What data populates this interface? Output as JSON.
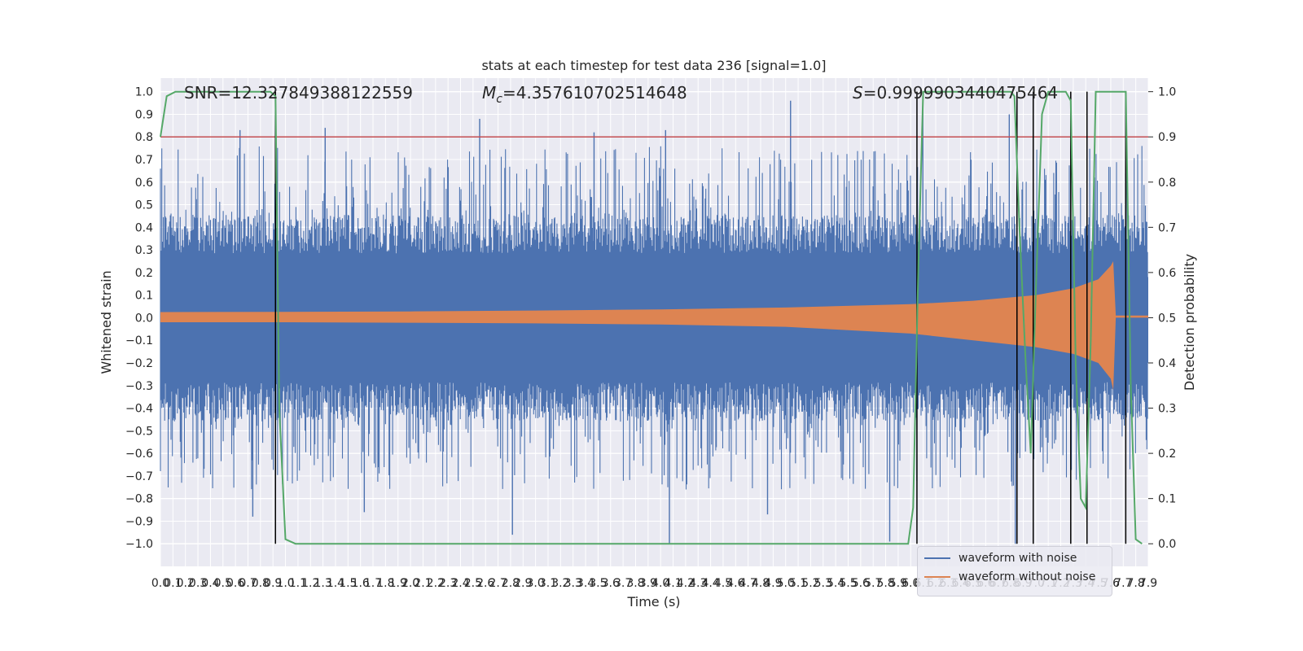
{
  "chart_data": {
    "type": "line",
    "title": "stats at each timestep for test data 236 [signal=1.0]",
    "xlabel": "Time (s)",
    "ylabel_left": "Whitened strain",
    "ylabel_right": "Detection probability",
    "xlim": [
      0.0,
      7.9
    ],
    "ylim_left": [
      -1.1,
      1.06
    ],
    "ylim_right": [
      -0.05,
      1.03
    ],
    "grid": true,
    "x_ticks": [
      "0.0",
      "0.1",
      "0.2",
      "0.3",
      "0.4",
      "0.5",
      "0.6",
      "0.7",
      "0.8",
      "0.9",
      "1.0",
      "1.1",
      "1.2",
      "1.3",
      "1.4",
      "1.5",
      "1.6",
      "1.7",
      "1.8",
      "1.9",
      "2.0",
      "2.1",
      "2.2",
      "2.3",
      "2.4",
      "2.5",
      "2.6",
      "2.7",
      "2.8",
      "2.9",
      "3.0",
      "3.1",
      "3.2",
      "3.3",
      "3.4",
      "3.5",
      "3.6",
      "3.7",
      "3.8",
      "3.9",
      "4.0",
      "4.1",
      "4.2",
      "4.3",
      "4.4",
      "4.5",
      "4.6",
      "4.7",
      "4.8",
      "4.9",
      "5.0",
      "5.1",
      "5.2",
      "5.3",
      "5.4",
      "5.5",
      "5.6",
      "5.7",
      "5.8",
      "5.9",
      "6.0",
      "6.1",
      "6.2",
      "6.3",
      "6.4",
      "6.5",
      "6.6",
      "6.7",
      "6.8",
      "6.9",
      "7.0",
      "7.1",
      "7.2",
      "7.3",
      "7.4",
      "7.5",
      "7.6",
      "7.7",
      "7.8",
      "7.9"
    ],
    "y_ticks_left": [
      "1.0",
      "0.9",
      "0.8",
      "0.7",
      "0.6",
      "0.5",
      "0.4",
      "0.3",
      "0.2",
      "0.1",
      "0.0",
      "−0.1",
      "−0.2",
      "−0.3",
      "−0.4",
      "−0.5",
      "−0.6",
      "−0.7",
      "−0.8",
      "−0.9",
      "−1.0"
    ],
    "y_ticks_right": [
      "1.0",
      "0.9",
      "0.8",
      "0.7",
      "0.6",
      "0.5",
      "0.4",
      "0.3",
      "0.2",
      "0.1",
      "0.0"
    ],
    "annotations": {
      "snr": "SNR=12.327849388122559",
      "mc_symbol": "M",
      "mc_sub": "c",
      "mc_value": "=4.357610702514648",
      "s_symbol": "S",
      "s_value": "=0.9999903440475464"
    },
    "threshold": 0.9,
    "trigger_times": [
      0.92,
      6.05,
      6.85,
      6.98,
      7.28,
      7.41,
      7.72
    ],
    "series": [
      {
        "name": "waveform with noise",
        "color": "#4c72b0",
        "axis": "left",
        "description": "noisy whitened strain, envelope approx",
        "envelope_x": [
          0.0,
          1.0,
          2.0,
          3.0,
          4.0,
          5.0,
          6.0,
          7.0,
          7.9
        ],
        "envelope_typical": [
          0.38,
          0.38,
          0.38,
          0.38,
          0.38,
          0.38,
          0.38,
          0.38,
          0.38
        ],
        "peaks_pos": [
          0.83,
          0.84,
          0.88,
          0.82,
          0.83,
          0.96,
          0.96,
          0.9
        ],
        "peaks_neg": [
          -0.88,
          -0.86,
          -0.96,
          -1.0,
          -0.87,
          -0.99,
          -1.0
        ]
      },
      {
        "name": "waveform without noise",
        "color": "#dd8452",
        "axis": "left",
        "description": "chirp amplitude envelope",
        "x": [
          0.0,
          1.0,
          2.0,
          3.0,
          4.0,
          5.0,
          6.0,
          6.5,
          7.0,
          7.3,
          7.5,
          7.6,
          7.62,
          7.64,
          7.7,
          7.9
        ],
        "amp_pos": [
          0.025,
          0.026,
          0.028,
          0.032,
          0.037,
          0.045,
          0.06,
          0.075,
          0.1,
          0.13,
          0.17,
          0.23,
          0.25,
          0.01,
          0.01,
          0.01
        ],
        "amp_neg": [
          -0.02,
          -0.02,
          -0.022,
          -0.025,
          -0.03,
          -0.04,
          -0.07,
          -0.1,
          -0.13,
          -0.16,
          -0.2,
          -0.27,
          -0.32,
          0.0,
          0.0,
          0.0
        ]
      },
      {
        "name": "detection probability",
        "color": "#55a868",
        "axis": "right",
        "x": [
          0.0,
          0.05,
          0.12,
          0.2,
          0.88,
          0.92,
          0.95,
          1.0,
          1.08,
          5.98,
          6.02,
          6.06,
          6.1,
          6.8,
          6.83,
          6.87,
          6.92,
          6.96,
          7.0,
          7.05,
          7.1,
          7.16,
          7.2,
          7.24,
          7.28,
          7.32,
          7.36,
          7.4,
          7.44,
          7.48,
          7.72,
          7.76,
          7.8,
          7.85
        ],
        "y": [
          0.9,
          0.99,
          1.0,
          1.0,
          1.0,
          0.99,
          0.3,
          0.01,
          0.0,
          0.0,
          0.08,
          0.6,
          1.0,
          1.0,
          0.99,
          0.7,
          0.4,
          0.2,
          0.55,
          0.95,
          1.0,
          1.0,
          1.0,
          1.0,
          0.98,
          0.4,
          0.1,
          0.08,
          0.45,
          1.0,
          1.0,
          0.35,
          0.01,
          0.0
        ]
      }
    ],
    "legend": {
      "placement": "bottom-right",
      "entries": [
        {
          "label": "waveform with noise",
          "color": "#4c72b0"
        },
        {
          "label": "waveform without noise",
          "color": "#dd8452"
        }
      ]
    },
    "colors": {
      "background": "#eaeaf2",
      "grid": "#ffffff",
      "threshold": "#c44e52",
      "trigger": "#000000",
      "text": "#262626"
    }
  }
}
